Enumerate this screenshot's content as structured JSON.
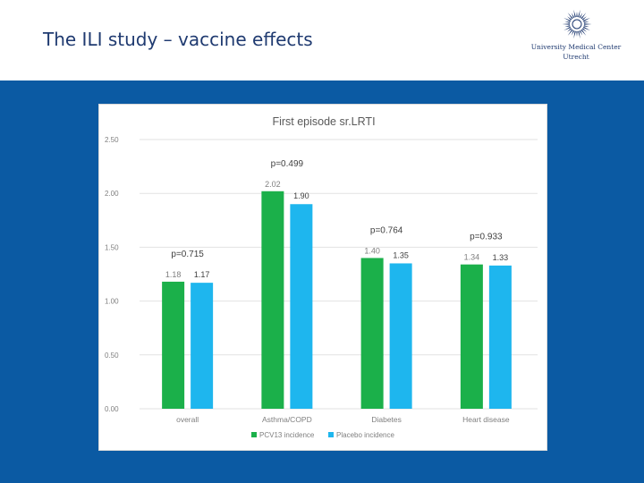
{
  "slide": {
    "title": "The ILI study – vaccine effects"
  },
  "logo": {
    "icon": "umc-sunburst-logo",
    "line1": "University Medical Center",
    "line2": "Utrecht",
    "color": "#1f3a70"
  },
  "colors": {
    "panel": "#0b5aa3",
    "pcv13": "#1bb04a",
    "placebo": "#1eb6ee",
    "grid": "#e2e2e2",
    "text": "#595959"
  },
  "chart_data": {
    "type": "bar",
    "title": "First episode sr.LRTI",
    "xlabel": "",
    "ylabel": "",
    "ylim": [
      0,
      2.5
    ],
    "yticks": [
      "0.00",
      "0.50",
      "1.00",
      "1.50",
      "2.00",
      "2.50"
    ],
    "ytick_values": [
      0,
      0.5,
      1.0,
      1.5,
      2.0,
      2.5
    ],
    "grid": true,
    "legend_position": "bottom",
    "categories": [
      "overall",
      "Asthma/COPD",
      "Diabetes",
      "Heart disease"
    ],
    "series": [
      {
        "name": "PCV13 incidence",
        "values": [
          1.18,
          2.02,
          1.4,
          1.34
        ],
        "labels": [
          "1.18",
          "2.02",
          "1.40",
          "1.34"
        ]
      },
      {
        "name": "Placebo incidence",
        "values": [
          1.17,
          1.9,
          1.35,
          1.33
        ],
        "labels": [
          "1.17",
          "1.90",
          "1.35",
          "1.33"
        ]
      }
    ],
    "annotations": [
      "p=0.715",
      "p=0.499",
      "p=0.764",
      "p=0.933"
    ]
  }
}
